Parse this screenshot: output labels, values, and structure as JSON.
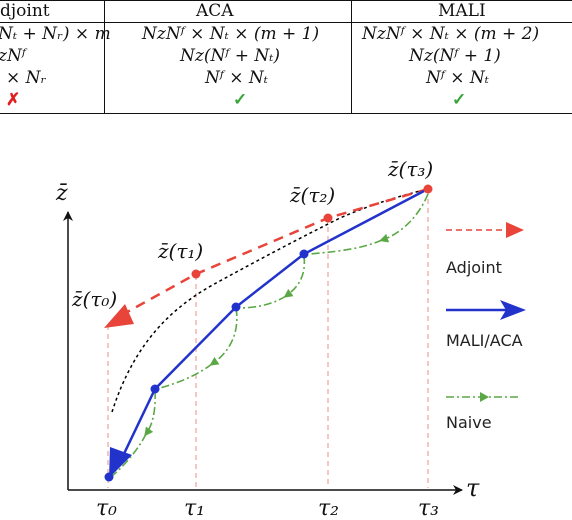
{
  "table": {
    "headers": [
      "djoint",
      "ACA",
      "MALI"
    ],
    "rows": [
      [
        "Nₜ + Nᵣ) × m",
        "NzNᶠ × Nₜ × (m + 1)",
        "NzNᶠ × Nₜ × (m + 2)"
      ],
      [
        "zNᶠ",
        "Nz(Nᶠ + Nₜ)",
        "Nz(Nᶠ + 1)"
      ],
      [
        "× Nᵣ",
        "Nᶠ × Nₜ",
        "Nᶠ × Nₜ"
      ],
      [
        "✗",
        "✓",
        "✓"
      ]
    ]
  },
  "diagram": {
    "y_axis_label": "z̄",
    "x_axis_label": "τ",
    "point_labels": [
      "z̄(τ₀)",
      "z̄(τ₁)",
      "z̄(τ₂)",
      "z̄(τ₃)"
    ],
    "tick_labels": [
      "τ₀",
      "τ₁",
      "τ₂",
      "τ₃"
    ],
    "legend": [
      {
        "label": "Adjoint",
        "color": "#e8443a",
        "style": "dashed"
      },
      {
        "label": "MALI/ACA",
        "color": "#2233cc",
        "style": "solid"
      },
      {
        "label": "Naive",
        "color": "#5aa845",
        "style": "dash-dot"
      }
    ],
    "colors": {
      "adjoint": "#e8443a",
      "mali": "#2233cc",
      "naive": "#5aa845",
      "guide": "#f0a0a0",
      "true_path": "#000000"
    }
  }
}
